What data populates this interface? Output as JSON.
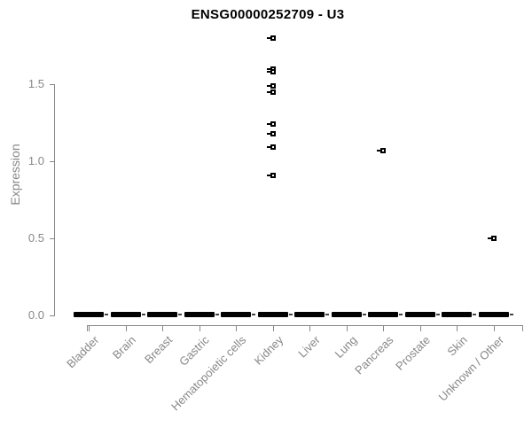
{
  "chart_data": {
    "type": "scatter",
    "title": "ENSG00000252709 - U3",
    "ylabel": "Expression",
    "xlabel": "",
    "categories": [
      "Bladder",
      "Brain",
      "Breast",
      "Gastric",
      "Hematopoietic cells",
      "Kidney",
      "Liver",
      "Lung",
      "Pancreas",
      "Prostate",
      "Skin",
      "Unknown / Other"
    ],
    "yticks": [
      "0.0",
      "0.5",
      "1.0",
      "1.5"
    ],
    "ylim": [
      0,
      1.85
    ],
    "grid": false,
    "legend": false,
    "marker": "open-square-with-left-dash",
    "colors": {
      "points": "#000000",
      "zero_bars": "#000000",
      "axis": "#888888",
      "tick_labels": "#888888",
      "title": "#000000"
    },
    "zero_bars": {
      "all_categories": true,
      "value": 0
    },
    "outlier_points": [
      {
        "category": "Kidney",
        "values": [
          1.8,
          1.6,
          1.58,
          1.49,
          1.45,
          1.24,
          1.18,
          1.09,
          0.91
        ]
      },
      {
        "category": "Pancreas",
        "values": [
          1.07
        ]
      },
      {
        "category": "Unknown / Other",
        "values": [
          0.5
        ]
      }
    ]
  }
}
